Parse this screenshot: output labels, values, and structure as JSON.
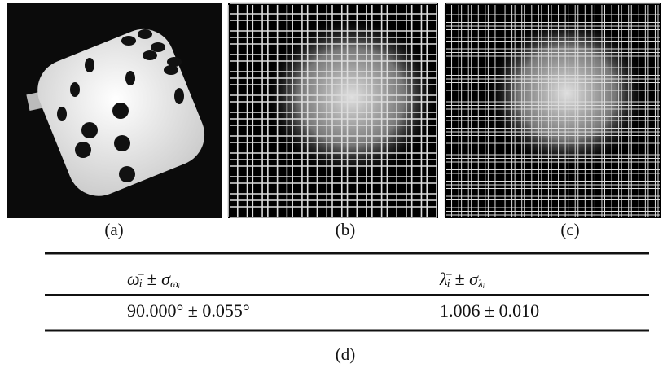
{
  "figure": {
    "panels": [
      {
        "caption": "(a)"
      },
      {
        "caption": "(b)"
      },
      {
        "caption": "(c)"
      }
    ],
    "table": {
      "headers": [
        {
          "symbol": "ω̄ᵢ ± σ",
          "subscript": "ωᵢ"
        },
        {
          "symbol": "λ̄ᵢ ± σ",
          "subscript": "λᵢ"
        }
      ],
      "rows": [
        [
          "90.000° ± 0.055°",
          "1.006 ± 0.010"
        ]
      ]
    },
    "caption": "(d)"
  }
}
